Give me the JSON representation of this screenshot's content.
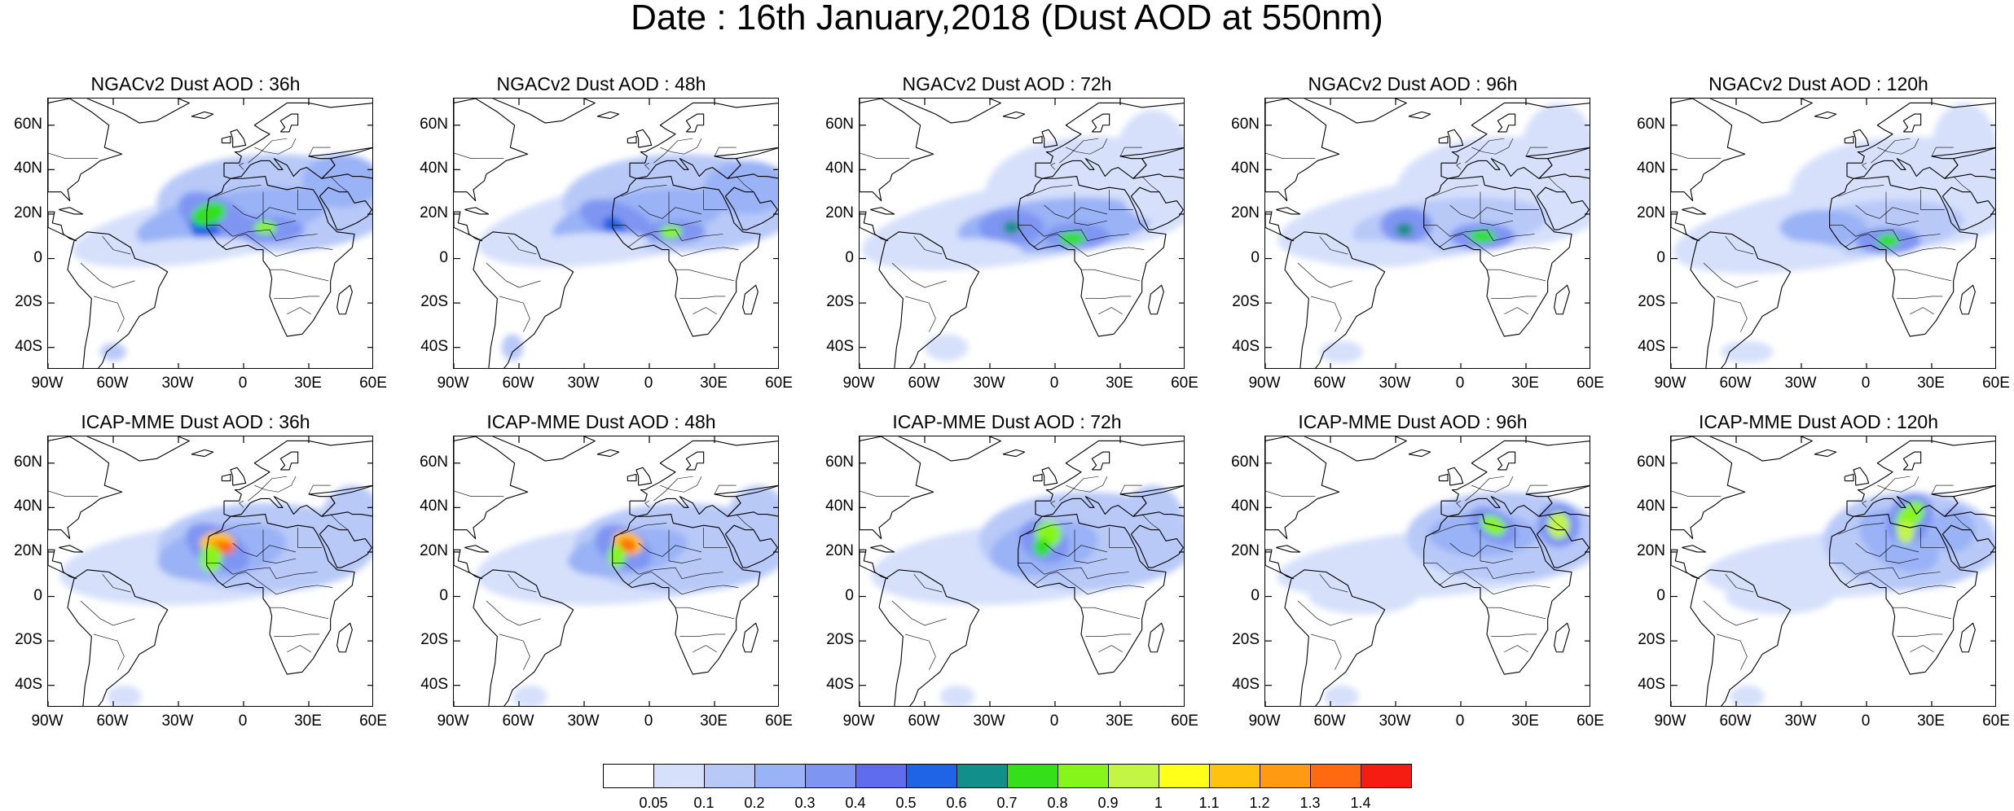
{
  "title": "Date : 16th January,2018 (Dust AOD at 550nm)",
  "axis": {
    "lat_labels": [
      "60N",
      "40N",
      "20N",
      "0",
      "20S",
      "40S"
    ],
    "lon_labels": [
      "90W",
      "60W",
      "30W",
      "0",
      "30E",
      "60E"
    ],
    "lat_values": [
      60,
      40,
      20,
      0,
      -20,
      -40
    ],
    "lon_values": [
      -90,
      -60,
      -30,
      0,
      30,
      60
    ],
    "lon_range": [
      -90,
      60
    ],
    "lat_range": [
      -50,
      72
    ]
  },
  "panels": [
    {
      "id": "ngac-36",
      "title": "NGACv2 Dust AOD : 36h"
    },
    {
      "id": "ngac-48",
      "title": "NGACv2 Dust AOD : 48h"
    },
    {
      "id": "ngac-72",
      "title": "NGACv2 Dust AOD : 72h"
    },
    {
      "id": "ngac-96",
      "title": "NGACv2 Dust AOD : 96h"
    },
    {
      "id": "ngac-120",
      "title": "NGACv2 Dust AOD : 120h"
    },
    {
      "id": "icap-36",
      "title": "ICAP-MME Dust AOD : 36h"
    },
    {
      "id": "icap-48",
      "title": "ICAP-MME Dust AOD : 48h"
    },
    {
      "id": "icap-72",
      "title": "ICAP-MME Dust AOD : 72h"
    },
    {
      "id": "icap-96",
      "title": "ICAP-MME Dust AOD : 96h"
    },
    {
      "id": "icap-120",
      "title": "ICAP-MME Dust AOD : 120h"
    }
  ],
  "colorbar": {
    "labels": [
      "0.05",
      "0.1",
      "0.2",
      "0.3",
      "0.4",
      "0.5",
      "0.6",
      "0.7",
      "0.8",
      "0.9",
      "1",
      "1.1",
      "1.2",
      "1.3",
      "1.4"
    ],
    "colors": [
      "#ffffff",
      "#d6e0fb",
      "#b8c9f8",
      "#9ab2f6",
      "#7f95f2",
      "#5f6cec",
      "#1f63e6",
      "#118f8a",
      "#33e01a",
      "#86f51a",
      "#c2f544",
      "#ffff1a",
      "#ffc20f",
      "#ff9a12",
      "#ff6a10",
      "#f71c12"
    ]
  }
}
